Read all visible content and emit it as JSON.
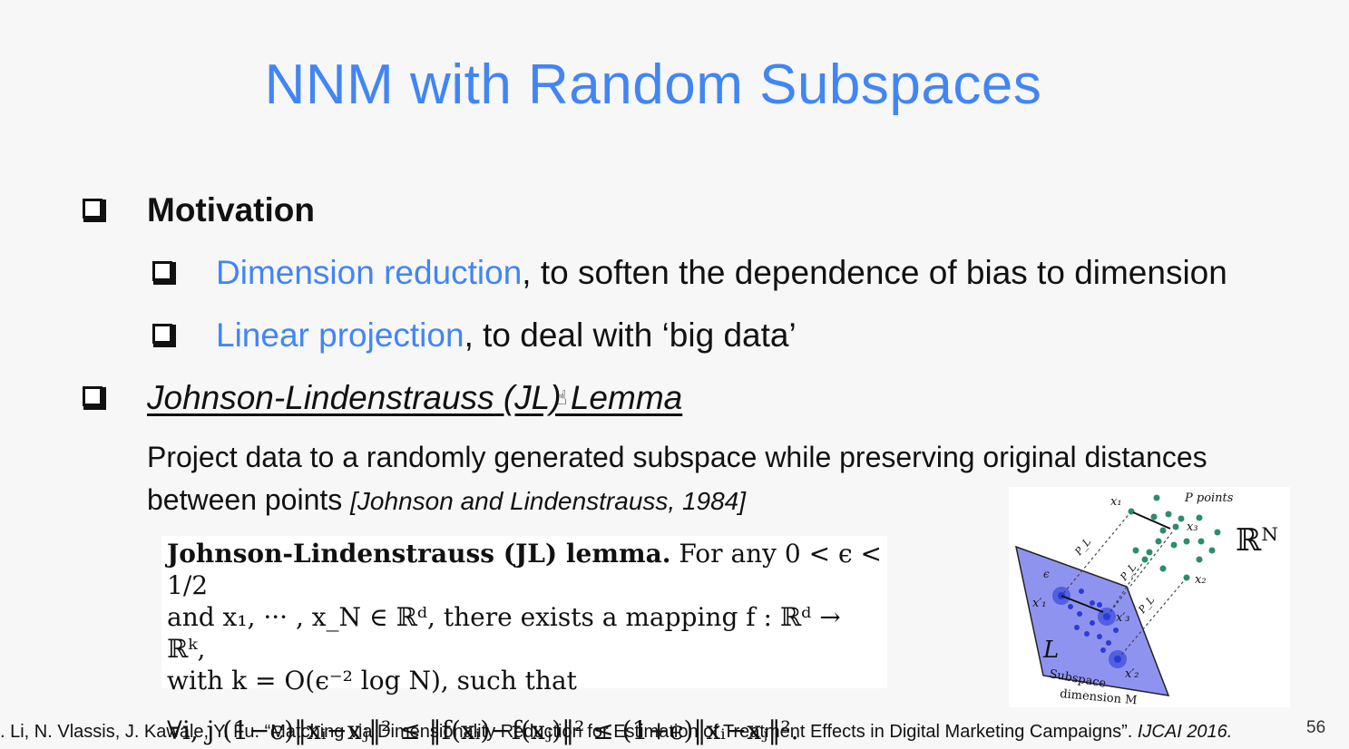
{
  "title": "NNM with Random Subspaces",
  "bullets": {
    "motivation": "Motivation",
    "sub1_blue": "Dimension reduction",
    "sub1_rest": ", to soften the dependence of bias to dimension",
    "sub2_blue": "Linear projection",
    "sub2_rest": ", to deal with ‘big data’",
    "jl_heading": "Johnson-Lindenstrauss (JL) Lemma",
    "jl_line1": "Project data to a randomly generated subspace while preserving original distances",
    "jl_line2": "between points ",
    "jl_cite": "[Johnson and Lindenstrauss, 1984]"
  },
  "lemma": {
    "name": "Johnson-Lindenstrauss (JL) lemma.",
    "line1_rest": " For any 0 < ϵ < 1/2",
    "line2": "and x₁, ··· , x_N ∈ ℝᵈ, there exists a mapping f : ℝᵈ → ℝᵏ,",
    "line3": "with k = O(ϵ⁻² log N), such that",
    "line4": "∀i, j (1−ϵ)‖xᵢ−xⱼ‖² ≤ ‖f(xᵢ)−f(xⱼ)‖² ≤ (1+ϵ)‖xᵢ−xⱼ‖²."
  },
  "figure": {
    "x1": "x₁",
    "x2": "x₂",
    "x3": "x₃",
    "x1p": "x′₁",
    "x2p": "x′₂",
    "x3p": "x′₃",
    "p_points": "P points",
    "rn": "ℝᴺ",
    "pl": "P_L",
    "eps": "ϵ",
    "L": "L",
    "subspace": "Subspace",
    "dimension": "dimension M"
  },
  "footer": {
    "text": ". Li, N. Vlassis, J. Kawale, Y. Fu. “Matching via Dimensionality Reduction for Estimation of Treatment Effects in Digital Marketing Campaigns”. ",
    "venue": "IJCAI 2016."
  },
  "page_number": "56"
}
